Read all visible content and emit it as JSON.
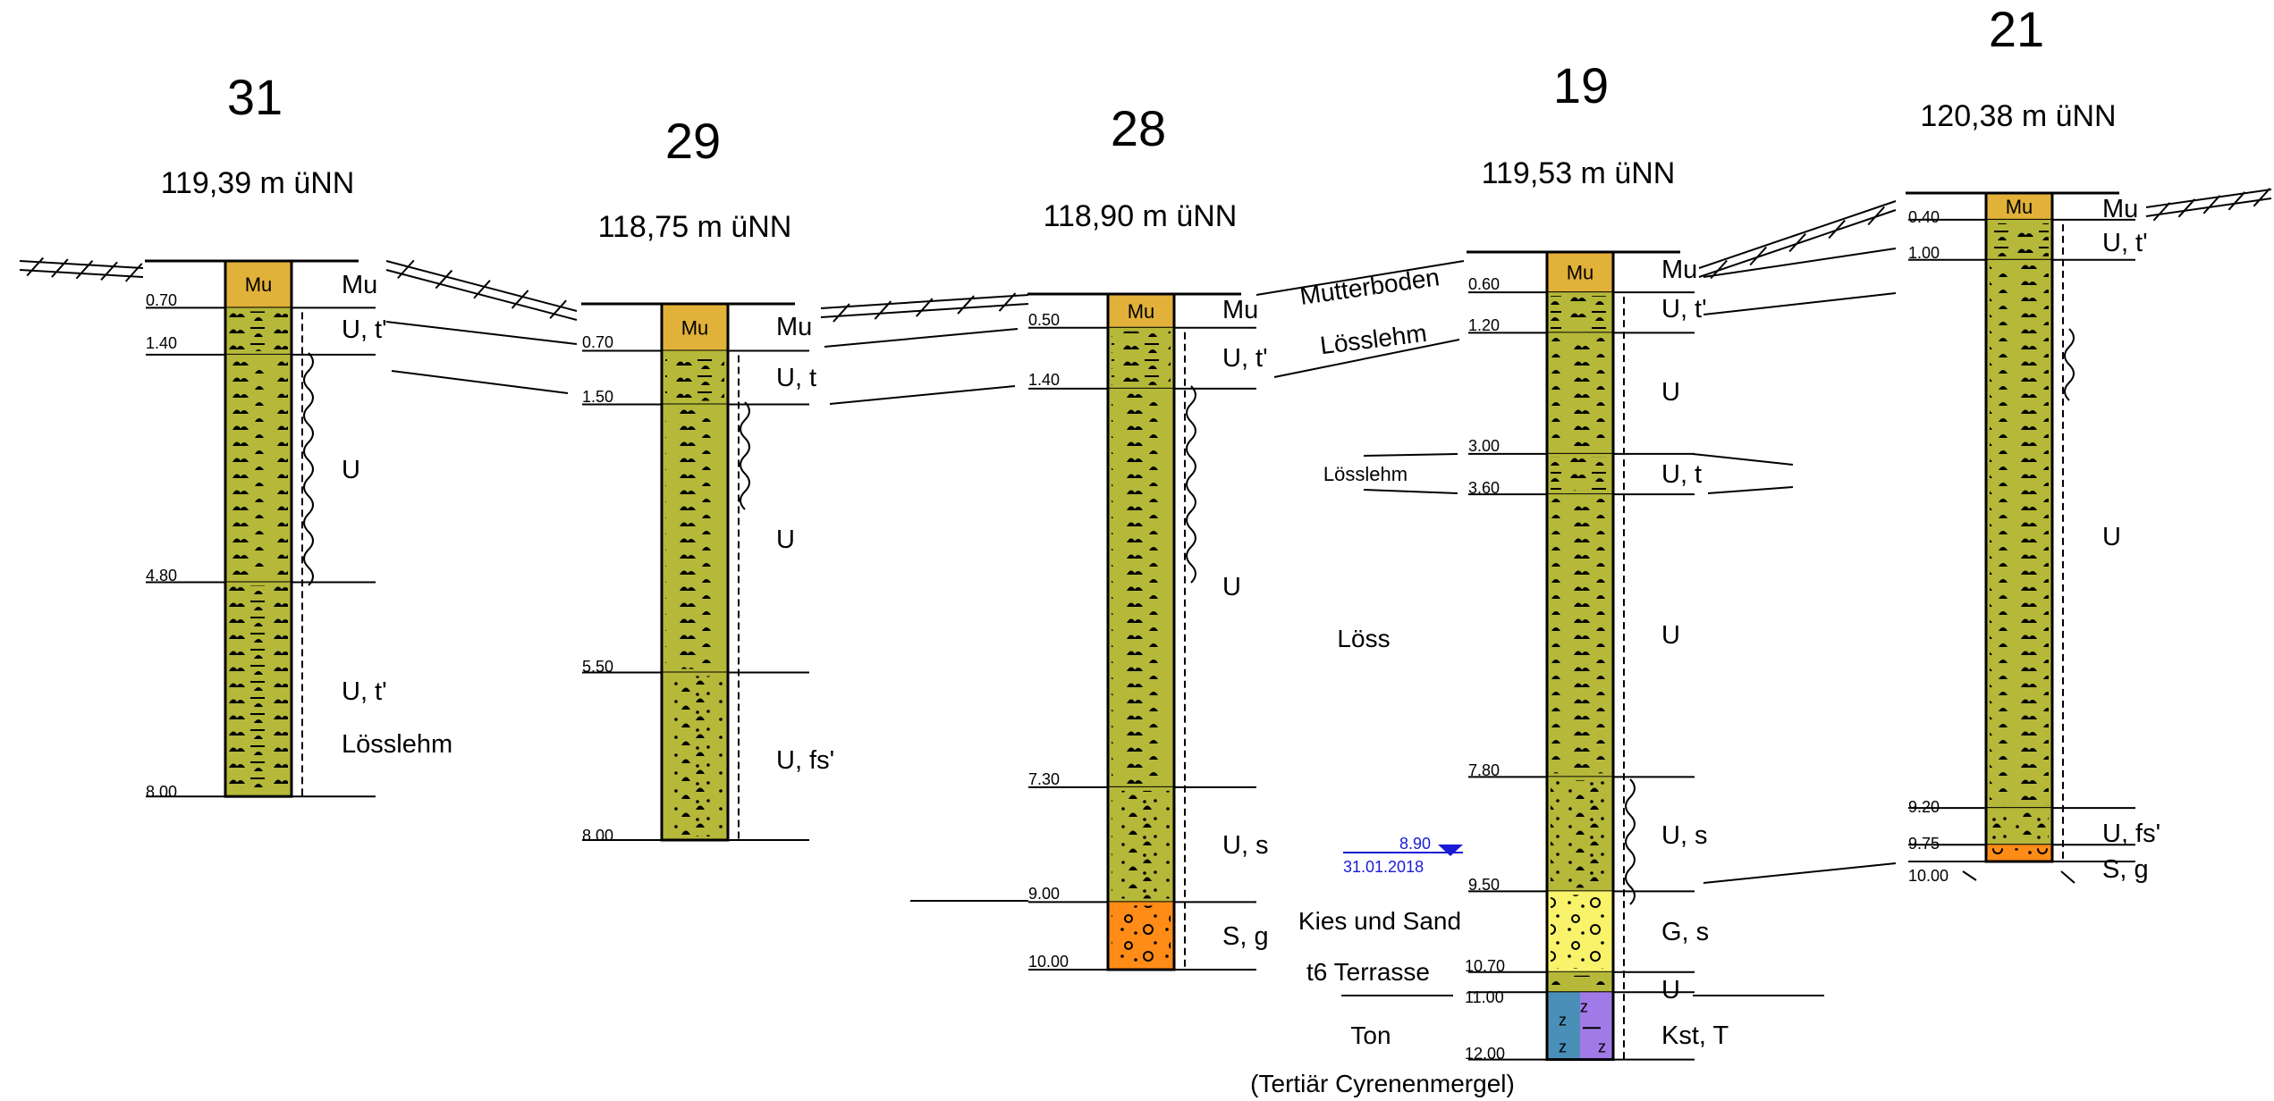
{
  "colors": {
    "loess": "#b5b839",
    "topsoil": "#e2b13a",
    "sand_gravel": "#ff8c16",
    "terrace": "#f8f36a",
    "clay_blue": "#4a8fb8",
    "clay_purple": "#a07ae6",
    "water": "#1a1ad6"
  },
  "boreholes": [
    {
      "id": "31",
      "elevation": "119,39 m üNN",
      "final_depth": 8.0,
      "layers": [
        {
          "to": 0.7,
          "type": "topsoil",
          "symbol": "Mu"
        },
        {
          "to": 1.4,
          "type": "loess_clayey"
        },
        {
          "to": 4.8,
          "type": "loess"
        },
        {
          "to": 8.0,
          "type": "loess_clayey"
        }
      ],
      "depth_labels": [
        "0.70",
        "1.40",
        "4.80",
        "8.00"
      ],
      "soil_labels": [
        "Mu",
        "U, t'",
        "U",
        "U, t'"
      ],
      "geo_labels": [
        "Lösslehm"
      ]
    },
    {
      "id": "29",
      "elevation": "118,75 m üNN",
      "final_depth": 8.0,
      "layers": [
        {
          "to": 0.7,
          "type": "topsoil",
          "symbol": "Mu"
        },
        {
          "to": 1.5,
          "type": "loess_clayey"
        },
        {
          "to": 5.5,
          "type": "loess"
        },
        {
          "to": 8.0,
          "type": "loess_sandy"
        }
      ],
      "depth_labels": [
        "0.70",
        "1.50",
        "5.50",
        "8.00"
      ],
      "soil_labels": [
        "Mu",
        "U, t",
        "U",
        "U, fs'"
      ]
    },
    {
      "id": "28",
      "elevation": "118,90 m üNN",
      "final_depth": 10.0,
      "layers": [
        {
          "to": 0.5,
          "type": "topsoil",
          "symbol": "Mu"
        },
        {
          "to": 1.4,
          "type": "loess_clayey"
        },
        {
          "to": 7.3,
          "type": "loess"
        },
        {
          "to": 9.0,
          "type": "loess_sandy"
        },
        {
          "to": 10.0,
          "type": "sand_gravel"
        }
      ],
      "depth_labels": [
        "0.50",
        "1.40",
        "7.30",
        "9.00",
        "10.00"
      ],
      "soil_labels": [
        "Mu",
        "U, t'",
        "U",
        "U, s",
        "S, g"
      ]
    },
    {
      "id": "19",
      "elevation": "119,53 m üNN",
      "final_depth": 12.0,
      "layers": [
        {
          "to": 0.6,
          "type": "topsoil",
          "symbol": "Mu"
        },
        {
          "to": 1.2,
          "type": "loess_clayey"
        },
        {
          "to": 3.0,
          "type": "loess"
        },
        {
          "to": 3.6,
          "type": "loess_clayey"
        },
        {
          "to": 7.8,
          "type": "loess"
        },
        {
          "to": 9.5,
          "type": "loess_sandy"
        },
        {
          "to": 10.7,
          "type": "terrace"
        },
        {
          "to": 11.0,
          "type": "loess_thin"
        },
        {
          "to": 12.0,
          "type": "clay"
        }
      ],
      "depth_labels": [
        "0.60",
        "1.20",
        "3.00",
        "3.60",
        "7.80",
        "9.50",
        "10.70",
        "11.00",
        "12.00"
      ],
      "soil_labels": [
        "Mu",
        "U, t'",
        "U",
        "U, t",
        "U",
        "U, s",
        "G, s",
        "U",
        "Kst, T"
      ],
      "water_level": {
        "depth": "8.90",
        "date": "31.01.2018"
      }
    },
    {
      "id": "21",
      "elevation": "120,38 m üNN",
      "final_depth": 10.0,
      "layers": [
        {
          "to": 0.4,
          "type": "topsoil",
          "symbol": "Mu"
        },
        {
          "to": 1.0,
          "type": "loess_clayey"
        },
        {
          "to": 9.2,
          "type": "loess"
        },
        {
          "to": 9.75,
          "type": "loess_sandy"
        },
        {
          "to": 10.0,
          "type": "sand_gravel"
        }
      ],
      "depth_labels": [
        "0.40",
        "1.00",
        "9.20",
        "9.75",
        "10.00"
      ],
      "soil_labels": [
        "Mu",
        "U, t'",
        "U",
        "U, fs'",
        "S, g"
      ]
    }
  ],
  "geology": {
    "mutterboden": "Mutterboden",
    "loesslehm_upper": "Lösslehm",
    "loesslehm_mid": "Lösslehm",
    "loess": "Löss",
    "kies_sand": "Kies und Sand",
    "terrasse": "t6 Terrasse",
    "ton": "Ton",
    "tertiaer": "(Tertiär Cyrenenmergel)"
  }
}
